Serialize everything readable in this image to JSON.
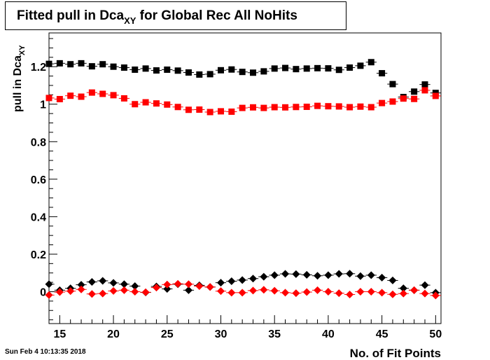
{
  "title": {
    "prefix": "Fitted pull in Dca",
    "sub": "XY",
    "suffix": " for Global Rec All NoHits"
  },
  "footer": {
    "date": "Sun Feb  4 10:13:35 2018"
  },
  "chart_data": {
    "type": "scatter",
    "title": "Fitted pull in Dca_XY for Global Rec All NoHits",
    "xlabel": "No. of Fit Points",
    "ylabel": "pull in Dca_XY",
    "ylabel_prefix": "pull in Dca",
    "ylabel_sub": "XY",
    "xlim": [
      14,
      50.5
    ],
    "ylim": [
      -0.17,
      1.38
    ],
    "x_ticks": [
      15,
      20,
      25,
      30,
      35,
      40,
      45,
      50
    ],
    "y_ticks": [
      0,
      0.2,
      0.4,
      0.6,
      0.8,
      1,
      1.2
    ],
    "y_tick_labels": [
      "0",
      "0.2",
      "0.4",
      "0.6",
      "0.8",
      "1",
      "1.2"
    ],
    "grid": false,
    "legend": "none",
    "x": [
      14,
      15,
      16,
      17,
      18,
      19,
      20,
      21,
      22,
      23,
      24,
      25,
      26,
      27,
      28,
      29,
      30,
      31,
      32,
      33,
      34,
      35,
      36,
      37,
      38,
      39,
      40,
      41,
      42,
      43,
      44,
      45,
      46,
      47,
      48,
      49,
      50
    ],
    "series": [
      {
        "marker": "square",
        "color": "#000000",
        "values": [
          1.215,
          1.218,
          1.213,
          1.218,
          1.202,
          1.213,
          1.2,
          1.195,
          1.184,
          1.19,
          1.18,
          1.184,
          1.179,
          1.169,
          1.158,
          1.16,
          1.181,
          1.185,
          1.172,
          1.168,
          1.175,
          1.19,
          1.193,
          1.187,
          1.19,
          1.192,
          1.191,
          1.183,
          1.195,
          1.205,
          1.224,
          1.165,
          1.107,
          1.038,
          1.067,
          1.105,
          1.06
        ]
      },
      {
        "marker": "square",
        "color": "#ff0000",
        "values": [
          1.033,
          1.027,
          1.045,
          1.04,
          1.062,
          1.055,
          1.048,
          1.031,
          1.0,
          1.01,
          1.004,
          0.998,
          0.985,
          0.97,
          0.971,
          0.958,
          0.962,
          0.96,
          0.98,
          0.983,
          0.98,
          0.984,
          0.983,
          0.985,
          0.986,
          0.991,
          0.989,
          0.988,
          0.984,
          0.987,
          0.984,
          1.006,
          1.014,
          1.03,
          1.028,
          1.074,
          1.044
        ]
      },
      {
        "marker": "diamond",
        "color": "#000000",
        "values": [
          0.04,
          0.008,
          0.018,
          0.037,
          0.052,
          0.058,
          0.047,
          0.04,
          0.03,
          -0.004,
          0.028,
          0.015,
          0.04,
          0.008,
          0.034,
          0.025,
          0.048,
          0.056,
          0.062,
          0.07,
          0.08,
          0.088,
          0.095,
          0.094,
          0.09,
          0.085,
          0.088,
          0.095,
          0.096,
          0.083,
          0.088,
          0.075,
          0.06,
          0.018,
          0.008,
          0.035,
          -0.005
        ]
      },
      {
        "marker": "diamond",
        "color": "#ff0000",
        "values": [
          -0.018,
          -0.002,
          0.003,
          0.012,
          -0.012,
          -0.01,
          0.004,
          0.008,
          0.0,
          -0.003,
          0.022,
          0.038,
          0.042,
          0.04,
          0.03,
          0.025,
          0.003,
          -0.005,
          -0.005,
          0.006,
          0.01,
          0.005,
          -0.005,
          -0.008,
          -0.002,
          0.008,
          0.0,
          -0.008,
          -0.015,
          0.0,
          0.0,
          -0.005,
          -0.014,
          -0.01,
          0.008,
          -0.01,
          -0.02
        ]
      }
    ]
  }
}
